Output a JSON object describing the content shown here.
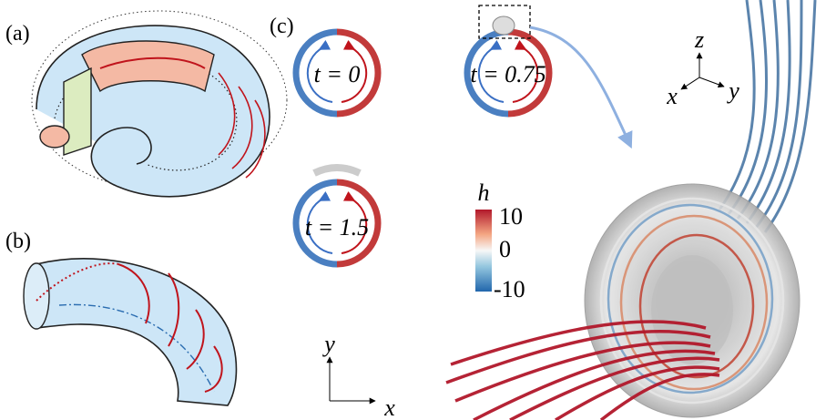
{
  "panels": {
    "a": {
      "label": "(a)"
    },
    "b": {
      "label": "(b)"
    },
    "c": {
      "label": "(c)",
      "snapshots": [
        {
          "label": "t = 0"
        },
        {
          "label": "t = 0.75"
        },
        {
          "label": "t = 1.5"
        }
      ],
      "colorbar": {
        "label": "h",
        "ticks": [
          "10",
          "0",
          "-10"
        ]
      },
      "axes2d": {
        "x": "x",
        "y": "y"
      }
    },
    "render": {
      "axes3d": {
        "x": "x",
        "y": "y",
        "z": "z"
      }
    }
  }
}
